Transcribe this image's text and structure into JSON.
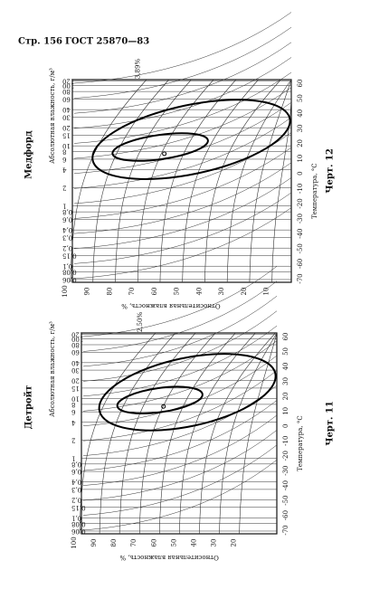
{
  "header": {
    "page": "Стр. 156",
    "standard": "ГОСТ 25870—83"
  },
  "figures": [
    {
      "station": "Медфорд",
      "y_label": "Абсолютная влажность, г/м³",
      "y_ticks": [
        "120",
        "100",
        "80",
        "60",
        "40",
        "30",
        "20",
        "15",
        "10",
        "8",
        "6",
        "4",
        "2",
        "1",
        "0,8",
        "0,6",
        "0,4",
        "0,3",
        "0,2",
        "0,15",
        "0,1",
        "0,08",
        "0,06"
      ],
      "temp_label": "Температура, °C",
      "temp_ticks": [
        "-70",
        "-60",
        "-50",
        "-40",
        "-30",
        "-20",
        "-10",
        "0",
        "10",
        "20",
        "30",
        "40",
        "50",
        "60"
      ],
      "rh_label": "Относительная влажность, %",
      "rh_ticks": [
        "100",
        "90",
        "80",
        "70",
        "60",
        "50",
        "40",
        "30",
        "20",
        "10"
      ],
      "note": "3,89%",
      "caption": "Черт. 12"
    },
    {
      "station": "Детройт",
      "y_label": "Абсолютная влажность, г/м³",
      "y_ticks": [
        "120",
        "100",
        "80",
        "60",
        "40",
        "30",
        "20",
        "15",
        "10",
        "8",
        "6",
        "4",
        "2",
        "1",
        "0,8",
        "0,6",
        "0,4",
        "0,3",
        "0,2",
        "0,15",
        "0,1",
        "0,08",
        "0,06"
      ],
      "temp_label": "Температура, °C",
      "temp_ticks": [
        "-70",
        "-60",
        "-50",
        "-40",
        "-30",
        "-20",
        "-10",
        "0",
        "10",
        "20",
        "30",
        "40",
        "50",
        "60"
      ],
      "rh_label": "Относительная влажность, %",
      "rh_ticks": [
        "100",
        "90",
        "80",
        "70",
        "60",
        "50",
        "40",
        "30",
        "20"
      ],
      "note": "2,50%",
      "caption": "Черт. 11"
    }
  ]
}
